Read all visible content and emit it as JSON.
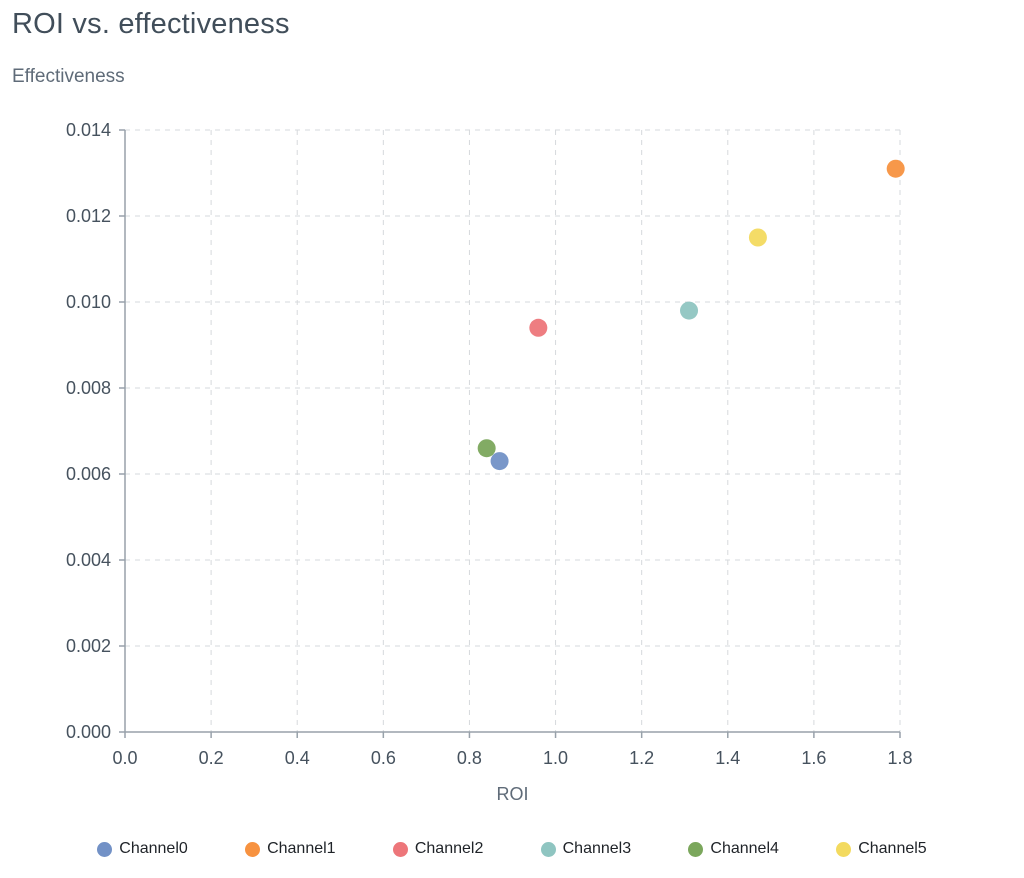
{
  "chart_data": {
    "type": "scatter",
    "title": "ROI vs. effectiveness",
    "xlabel": "ROI",
    "ylabel": "Effectiveness",
    "xlim": [
      0.0,
      1.8
    ],
    "ylim": [
      0.0,
      0.014
    ],
    "x_ticks": [
      0.0,
      0.2,
      0.4,
      0.6,
      0.8,
      1.0,
      1.2,
      1.4,
      1.6,
      1.8
    ],
    "x_tick_labels": [
      "0.0",
      "0.2",
      "0.4",
      "0.6",
      "0.8",
      "1.0",
      "1.2",
      "1.4",
      "1.6",
      "1.8"
    ],
    "y_ticks": [
      0.0,
      0.002,
      0.004,
      0.006,
      0.008,
      0.01,
      0.012,
      0.014
    ],
    "y_tick_labels": [
      "0.000",
      "0.002",
      "0.004",
      "0.006",
      "0.008",
      "0.010",
      "0.012",
      "0.014"
    ],
    "grid": true,
    "legend_position": "bottom",
    "series": [
      {
        "name": "Channel0",
        "color": "#7291c6",
        "points": [
          {
            "x": 0.87,
            "y": 0.0063
          }
        ]
      },
      {
        "name": "Channel1",
        "color": "#f79240",
        "points": [
          {
            "x": 1.79,
            "y": 0.0131
          }
        ]
      },
      {
        "name": "Channel2",
        "color": "#ed767a",
        "points": [
          {
            "x": 0.96,
            "y": 0.0094
          }
        ]
      },
      {
        "name": "Channel3",
        "color": "#8fc5c1",
        "points": [
          {
            "x": 1.31,
            "y": 0.0098
          }
        ]
      },
      {
        "name": "Channel4",
        "color": "#7ba75c",
        "points": [
          {
            "x": 0.84,
            "y": 0.0066
          }
        ]
      },
      {
        "name": "Channel5",
        "color": "#f3da5f",
        "points": [
          {
            "x": 1.47,
            "y": 0.0115
          }
        ]
      }
    ]
  }
}
